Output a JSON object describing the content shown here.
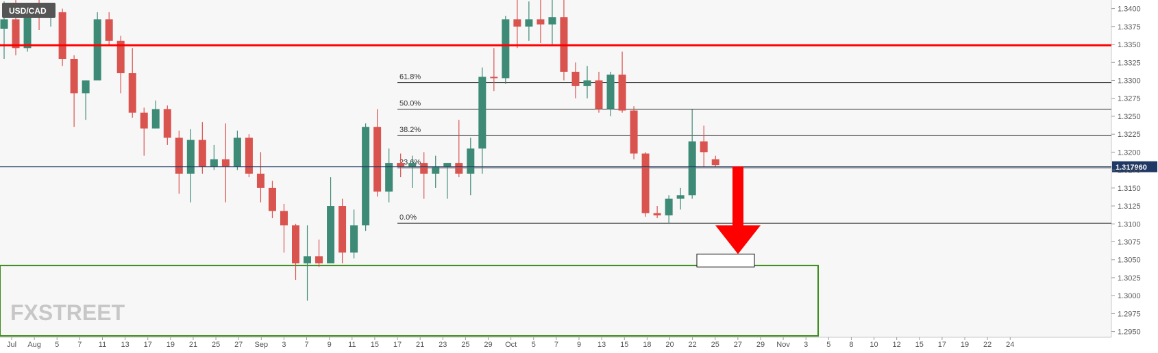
{
  "chart_data": {
    "type": "candlestick",
    "title": "USD/CAD",
    "y_axis": {
      "ticks": [
        "1.3400",
        "1.3375",
        "1.3350",
        "1.3325",
        "1.3300",
        "1.3275",
        "1.3250",
        "1.3225",
        "1.3200",
        "1.3175",
        "1.3150",
        "1.3125",
        "1.3100",
        "1.3075",
        "1.3050",
        "1.3025",
        "1.3000",
        "1.2975",
        "1.2950"
      ],
      "range": [
        1.2942,
        1.3412
      ]
    },
    "x_axis": {
      "ticks": [
        "Jul",
        "Aug",
        "5",
        "7",
        "11",
        "13",
        "17",
        "19",
        "21",
        "25",
        "27",
        "Sep",
        "3",
        "7",
        "9",
        "11",
        "15",
        "17",
        "21",
        "23",
        "25",
        "29",
        "Oct",
        "5",
        "7",
        "9",
        "13",
        "15",
        "18",
        "20",
        "22",
        "25",
        "27",
        "29",
        "Nov",
        "3",
        "5",
        "8",
        "10",
        "12",
        "15",
        "17",
        "19",
        "22",
        "24"
      ]
    },
    "current_price": "1.317960",
    "current_price_color": "#1f3864",
    "up_color": "#3d8a76",
    "down_color": "#d9534f",
    "resistance_line": {
      "value": 1.3349,
      "color": "#ff0000"
    },
    "fibonacci_levels": [
      {
        "label": "61.8%",
        "value": 1.3297
      },
      {
        "label": "50.0%",
        "value": 1.326
      },
      {
        "label": "38.2%",
        "value": 1.3223
      },
      {
        "label": "23.6%",
        "value": 1.3178
      },
      {
        "label": "0.0%",
        "value": 1.3101
      }
    ],
    "support_zone": {
      "top": 1.3042,
      "bottom": 1.2935,
      "color": "#3a8a1a"
    },
    "target_box": {
      "top": 1.3058,
      "bottom": 1.304
    },
    "arrow": {
      "direction": "down",
      "from": 1.318,
      "to": 1.3058,
      "color": "#ff0000"
    },
    "logo": "FXSTREET",
    "candles": [
      {
        "o": 1.3372,
        "h": 1.341,
        "l": 1.333,
        "c": 1.3385
      },
      {
        "o": 1.3385,
        "h": 1.3415,
        "l": 1.3335,
        "c": 1.3345
      },
      {
        "o": 1.3345,
        "h": 1.3405,
        "l": 1.334,
        "c": 1.3405
      },
      {
        "o": 1.3405,
        "h": 1.3413,
        "l": 1.337,
        "c": 1.3388
      },
      {
        "o": 1.3388,
        "h": 1.34,
        "l": 1.3375,
        "c": 1.3395
      },
      {
        "o": 1.3395,
        "h": 1.34,
        "l": 1.332,
        "c": 1.333
      },
      {
        "o": 1.333,
        "h": 1.3335,
        "l": 1.3235,
        "c": 1.3282
      },
      {
        "o": 1.3282,
        "h": 1.33,
        "l": 1.3245,
        "c": 1.33
      },
      {
        "o": 1.33,
        "h": 1.3395,
        "l": 1.33,
        "c": 1.3385
      },
      {
        "o": 1.3385,
        "h": 1.3395,
        "l": 1.335,
        "c": 1.3355
      },
      {
        "o": 1.3355,
        "h": 1.3362,
        "l": 1.3282,
        "c": 1.331
      },
      {
        "o": 1.331,
        "h": 1.3345,
        "l": 1.3248,
        "c": 1.3255
      },
      {
        "o": 1.3255,
        "h": 1.3262,
        "l": 1.3195,
        "c": 1.3233
      },
      {
        "o": 1.3233,
        "h": 1.3272,
        "l": 1.3233,
        "c": 1.326
      },
      {
        "o": 1.326,
        "h": 1.3265,
        "l": 1.321,
        "c": 1.322
      },
      {
        "o": 1.322,
        "h": 1.323,
        "l": 1.3142,
        "c": 1.317
      },
      {
        "o": 1.317,
        "h": 1.3232,
        "l": 1.313,
        "c": 1.3217
      },
      {
        "o": 1.3217,
        "h": 1.3242,
        "l": 1.317,
        "c": 1.318
      },
      {
        "o": 1.318,
        "h": 1.321,
        "l": 1.3175,
        "c": 1.319
      },
      {
        "o": 1.319,
        "h": 1.324,
        "l": 1.313,
        "c": 1.318
      },
      {
        "o": 1.318,
        "h": 1.323,
        "l": 1.3175,
        "c": 1.322
      },
      {
        "o": 1.322,
        "h": 1.3225,
        "l": 1.3165,
        "c": 1.317
      },
      {
        "o": 1.317,
        "h": 1.32,
        "l": 1.313,
        "c": 1.315
      },
      {
        "o": 1.315,
        "h": 1.316,
        "l": 1.3108,
        "c": 1.3118
      },
      {
        "o": 1.3118,
        "h": 1.3128,
        "l": 1.306,
        "c": 1.3098
      },
      {
        "o": 1.3098,
        "h": 1.31,
        "l": 1.3022,
        "c": 1.3045
      },
      {
        "o": 1.3045,
        "h": 1.3098,
        "l": 1.2993,
        "c": 1.3055
      },
      {
        "o": 1.3055,
        "h": 1.3078,
        "l": 1.304,
        "c": 1.3045
      },
      {
        "o": 1.3045,
        "h": 1.3165,
        "l": 1.3045,
        "c": 1.3125
      },
      {
        "o": 1.3125,
        "h": 1.3135,
        "l": 1.3045,
        "c": 1.306
      },
      {
        "o": 1.306,
        "h": 1.312,
        "l": 1.3052,
        "c": 1.3098
      },
      {
        "o": 1.3098,
        "h": 1.324,
        "l": 1.309,
        "c": 1.3235
      },
      {
        "o": 1.3235,
        "h": 1.326,
        "l": 1.3138,
        "c": 1.3145
      },
      {
        "o": 1.3145,
        "h": 1.3205,
        "l": 1.313,
        "c": 1.3185
      },
      {
        "o": 1.3185,
        "h": 1.3198,
        "l": 1.3165,
        "c": 1.318
      },
      {
        "o": 1.318,
        "h": 1.3195,
        "l": 1.315,
        "c": 1.3185
      },
      {
        "o": 1.3185,
        "h": 1.32,
        "l": 1.3135,
        "c": 1.317
      },
      {
        "o": 1.317,
        "h": 1.3195,
        "l": 1.315,
        "c": 1.318
      },
      {
        "o": 1.318,
        "h": 1.3185,
        "l": 1.3135,
        "c": 1.3185
      },
      {
        "o": 1.3185,
        "h": 1.3245,
        "l": 1.3165,
        "c": 1.317
      },
      {
        "o": 1.317,
        "h": 1.322,
        "l": 1.314,
        "c": 1.3205
      },
      {
        "o": 1.3205,
        "h": 1.3318,
        "l": 1.317,
        "c": 1.3305
      },
      {
        "o": 1.3305,
        "h": 1.3345,
        "l": 1.3285,
        "c": 1.3303
      },
      {
        "o": 1.3303,
        "h": 1.339,
        "l": 1.3295,
        "c": 1.3385
      },
      {
        "o": 1.3385,
        "h": 1.342,
        "l": 1.3345,
        "c": 1.3375
      },
      {
        "o": 1.3375,
        "h": 1.341,
        "l": 1.3355,
        "c": 1.3385
      },
      {
        "o": 1.3385,
        "h": 1.3418,
        "l": 1.3352,
        "c": 1.3378
      },
      {
        "o": 1.3378,
        "h": 1.3412,
        "l": 1.335,
        "c": 1.3388
      },
      {
        "o": 1.3388,
        "h": 1.3412,
        "l": 1.33,
        "c": 1.3312
      },
      {
        "o": 1.3312,
        "h": 1.3325,
        "l": 1.3275,
        "c": 1.3292
      },
      {
        "o": 1.3292,
        "h": 1.332,
        "l": 1.3275,
        "c": 1.33
      },
      {
        "o": 1.33,
        "h": 1.3312,
        "l": 1.3255,
        "c": 1.326
      },
      {
        "o": 1.326,
        "h": 1.3312,
        "l": 1.325,
        "c": 1.3308
      },
      {
        "o": 1.3308,
        "h": 1.334,
        "l": 1.3255,
        "c": 1.3258
      },
      {
        "o": 1.3258,
        "h": 1.3264,
        "l": 1.319,
        "c": 1.3198
      },
      {
        "o": 1.3198,
        "h": 1.32,
        "l": 1.311,
        "c": 1.3115
      },
      {
        "o": 1.3115,
        "h": 1.3125,
        "l": 1.3108,
        "c": 1.3112
      },
      {
        "o": 1.3112,
        "h": 1.314,
        "l": 1.31,
        "c": 1.3135
      },
      {
        "o": 1.3135,
        "h": 1.315,
        "l": 1.312,
        "c": 1.314
      },
      {
        "o": 1.314,
        "h": 1.326,
        "l": 1.3135,
        "c": 1.3215
      },
      {
        "o": 1.3215,
        "h": 1.3237,
        "l": 1.318,
        "c": 1.32
      },
      {
        "o": 1.319,
        "h": 1.3195,
        "l": 1.318,
        "c": 1.3182
      }
    ]
  }
}
